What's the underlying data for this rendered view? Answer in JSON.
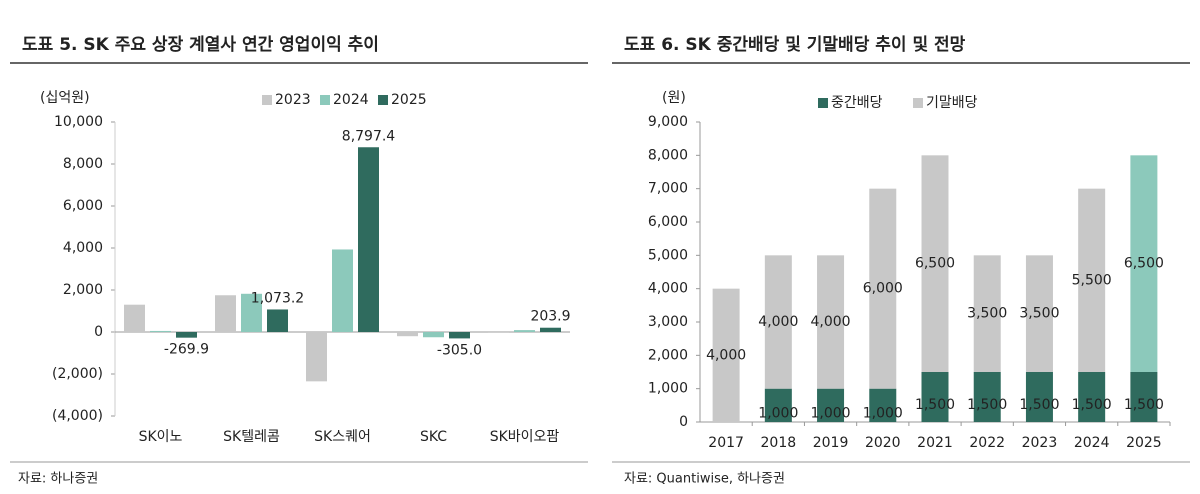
{
  "chart_data": [
    {
      "type": "bar",
      "title": "도표 5. SK 주요 상장 계열사 연간 영업이익 추이",
      "unit": "(십억원)",
      "source": "자료: 하나증권",
      "categories": [
        "SK이노",
        "SK텔레콤",
        "SK스퀘어",
        "SKC",
        "SK바이오팜"
      ],
      "series": [
        {
          "name": "2023",
          "color": "#c8c8c8",
          "values": [
            1300,
            1750,
            -2350,
            -200,
            -40
          ]
        },
        {
          "name": "2024",
          "color": "#8cc9bb",
          "values": [
            50,
            1820,
            3930,
            -250,
            90
          ]
        },
        {
          "name": "2025",
          "color": "#2f6b5e",
          "values": [
            -269.9,
            1073.2,
            8797.4,
            -305.0,
            203.9
          ],
          "value_labels": [
            "-269.9",
            "1,073.2",
            "8,797.4",
            "-305.0",
            "203.9"
          ]
        }
      ],
      "ylim": [
        -4000,
        10000
      ],
      "yticks": [
        {
          "value": -4000,
          "label": "(4,000)"
        },
        {
          "value": -2000,
          "label": "(2,000)"
        },
        0,
        {
          "value": 2000,
          "label": "2,000"
        },
        {
          "value": 4000,
          "label": "4,000"
        },
        {
          "value": 6000,
          "label": "6,000"
        },
        {
          "value": 8000,
          "label": "8,000"
        },
        {
          "value": 10000,
          "label": "10,000"
        }
      ]
    },
    {
      "type": "bar",
      "stacked": true,
      "title": "도표 6. SK 중간배당 및 기말배당 추이 및 전망",
      "unit": "(원)",
      "source": "자료: Quantiwise, 하나증권",
      "categories": [
        "2017",
        "2018",
        "2019",
        "2020",
        "2021",
        "2022",
        "2023",
        "2024",
        "2025"
      ],
      "series": [
        {
          "name": "중간배당",
          "color": "#2f6b5e",
          "values": [
            null,
            1000,
            1000,
            1000,
            1500,
            1500,
            1500,
            1500,
            1500
          ],
          "value_labels": [
            null,
            "1,000",
            "1,000",
            "1,000",
            "1,500",
            "1,500",
            "1,500",
            "1,500",
            "1,500"
          ]
        },
        {
          "name": "기말배당",
          "color": "#c8c8c8",
          "colors": [
            "#c8c8c8",
            "#c8c8c8",
            "#c8c8c8",
            "#c8c8c8",
            "#c8c8c8",
            "#c8c8c8",
            "#c8c8c8",
            "#c8c8c8",
            "#8cc9bb"
          ],
          "values": [
            4000,
            4000,
            4000,
            6000,
            6500,
            3500,
            3500,
            5500,
            6500
          ],
          "value_labels": [
            "4,000",
            "4,000",
            "4,000",
            "6,000",
            "6,500",
            "3,500",
            "3,500",
            "5,500",
            "6,500"
          ]
        }
      ],
      "ylim": [
        0,
        9000
      ],
      "yticks": [
        0,
        {
          "value": 1000,
          "label": "1,000"
        },
        {
          "value": 2000,
          "label": "2,000"
        },
        {
          "value": 3000,
          "label": "3,000"
        },
        {
          "value": 4000,
          "label": "4,000"
        },
        {
          "value": 5000,
          "label": "5,000"
        },
        {
          "value": 6000,
          "label": "6,000"
        },
        {
          "value": 7000,
          "label": "7,000"
        },
        {
          "value": 8000,
          "label": "8,000"
        },
        {
          "value": 9000,
          "label": "9,000"
        }
      ]
    }
  ]
}
